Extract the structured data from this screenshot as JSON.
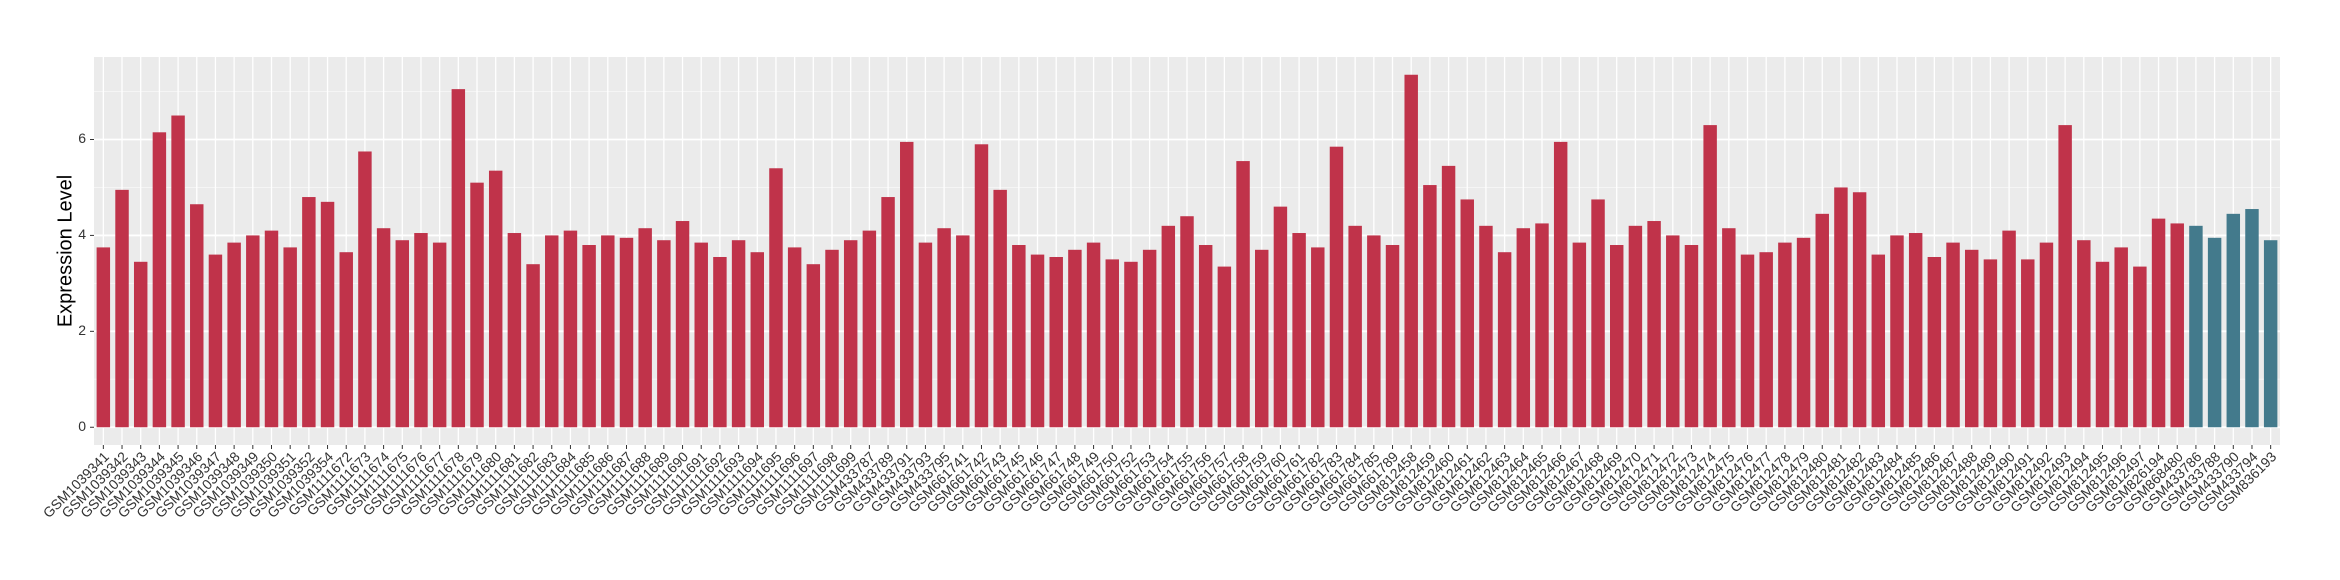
{
  "chart_data": {
    "type": "bar",
    "y_label": "Expression Level",
    "categories": [
      "GSM1039341",
      "GSM1039342",
      "GSM1039343",
      "GSM1039344",
      "GSM1039345",
      "GSM1039346",
      "GSM1039347",
      "GSM1039348",
      "GSM1039349",
      "GSM1039350",
      "GSM1039351",
      "GSM1039352",
      "GSM1039354",
      "GSM1111672",
      "GSM1111673",
      "GSM1111674",
      "GSM1111675",
      "GSM1111676",
      "GSM1111677",
      "GSM1111678",
      "GSM1111679",
      "GSM1111680",
      "GSM1111681",
      "GSM1111682",
      "GSM1111683",
      "GSM1111684",
      "GSM1111685",
      "GSM1111686",
      "GSM1111687",
      "GSM1111688",
      "GSM1111689",
      "GSM1111690",
      "GSM1111691",
      "GSM1111692",
      "GSM1111693",
      "GSM1111694",
      "GSM1111695",
      "GSM1111696",
      "GSM1111697",
      "GSM1111698",
      "GSM1111699",
      "GSM433787",
      "GSM433789",
      "GSM433791",
      "GSM433793",
      "GSM433795",
      "GSM661741",
      "GSM661742",
      "GSM661743",
      "GSM661745",
      "GSM661746",
      "GSM661747",
      "GSM661748",
      "GSM661749",
      "GSM661750",
      "GSM661752",
      "GSM661753",
      "GSM661754",
      "GSM661755",
      "GSM661756",
      "GSM661757",
      "GSM661758",
      "GSM661759",
      "GSM661760",
      "GSM661761",
      "GSM661782",
      "GSM661783",
      "GSM661784",
      "GSM661785",
      "GSM661789",
      "GSM812458",
      "GSM812459",
      "GSM812460",
      "GSM812461",
      "GSM812462",
      "GSM812463",
      "GSM812464",
      "GSM812465",
      "GSM812466",
      "GSM812467",
      "GSM812468",
      "GSM812469",
      "GSM812470",
      "GSM812471",
      "GSM812472",
      "GSM812473",
      "GSM812474",
      "GSM812475",
      "GSM812476",
      "GSM812477",
      "GSM812478",
      "GSM812479",
      "GSM812480",
      "GSM812481",
      "GSM812482",
      "GSM812483",
      "GSM812484",
      "GSM812485",
      "GSM812486",
      "GSM812487",
      "GSM812488",
      "GSM812489",
      "GSM812490",
      "GSM812491",
      "GSM812492",
      "GSM812493",
      "GSM812494",
      "GSM812495",
      "GSM812496",
      "GSM812497",
      "GSM826194",
      "GSM868480",
      "GSM433786",
      "GSM433788",
      "GSM433790",
      "GSM433794",
      "GSM836193"
    ],
    "values": [
      3.75,
      4.95,
      3.45,
      6.15,
      6.5,
      4.65,
      3.6,
      3.85,
      4.0,
      4.1,
      3.75,
      4.8,
      4.7,
      3.65,
      5.75,
      4.15,
      3.9,
      4.05,
      3.85,
      7.05,
      5.1,
      5.35,
      4.05,
      3.4,
      4.0,
      4.1,
      3.8,
      4.0,
      3.95,
      4.15,
      3.9,
      4.3,
      3.85,
      3.55,
      3.9,
      3.65,
      5.4,
      3.75,
      3.4,
      3.7,
      3.9,
      4.1,
      4.8,
      5.95,
      3.85,
      4.15,
      4.0,
      5.9,
      4.95,
      3.8,
      3.6,
      3.55,
      3.7,
      3.85,
      3.5,
      3.45,
      3.7,
      4.2,
      4.4,
      3.8,
      3.35,
      5.55,
      3.7,
      4.6,
      4.05,
      3.75,
      5.85,
      4.2,
      4.0,
      3.8,
      7.35,
      5.05,
      5.45,
      4.75,
      4.2,
      3.65,
      4.15,
      4.25,
      5.95,
      3.85,
      4.75,
      3.8,
      4.2,
      4.3,
      4.0,
      3.8,
      6.3,
      4.15,
      3.6,
      3.65,
      3.85,
      3.95,
      4.45,
      5.0,
      4.9,
      3.6,
      4.0,
      4.05,
      3.55,
      3.85,
      3.7,
      3.5,
      4.1,
      3.5,
      3.85,
      6.3,
      3.9,
      3.45,
      3.75,
      3.35,
      4.35,
      4.25,
      4.2,
      3.95,
      4.45,
      4.55,
      3.9
    ],
    "colors": [
      "#c0334a",
      "#c0334a",
      "#c0334a",
      "#c0334a",
      "#c0334a",
      "#c0334a",
      "#c0334a",
      "#c0334a",
      "#c0334a",
      "#c0334a",
      "#c0334a",
      "#c0334a",
      "#c0334a",
      "#c0334a",
      "#c0334a",
      "#c0334a",
      "#c0334a",
      "#c0334a",
      "#c0334a",
      "#c0334a",
      "#c0334a",
      "#c0334a",
      "#c0334a",
      "#c0334a",
      "#c0334a",
      "#c0334a",
      "#c0334a",
      "#c0334a",
      "#c0334a",
      "#c0334a",
      "#c0334a",
      "#c0334a",
      "#c0334a",
      "#c0334a",
      "#c0334a",
      "#c0334a",
      "#c0334a",
      "#c0334a",
      "#c0334a",
      "#c0334a",
      "#c0334a",
      "#c0334a",
      "#c0334a",
      "#c0334a",
      "#c0334a",
      "#c0334a",
      "#c0334a",
      "#c0334a",
      "#c0334a",
      "#c0334a",
      "#c0334a",
      "#c0334a",
      "#c0334a",
      "#c0334a",
      "#c0334a",
      "#c0334a",
      "#c0334a",
      "#c0334a",
      "#c0334a",
      "#c0334a",
      "#c0334a",
      "#c0334a",
      "#c0334a",
      "#c0334a",
      "#c0334a",
      "#c0334a",
      "#c0334a",
      "#c0334a",
      "#c0334a",
      "#c0334a",
      "#c0334a",
      "#c0334a",
      "#c0334a",
      "#c0334a",
      "#c0334a",
      "#c0334a",
      "#c0334a",
      "#c0334a",
      "#c0334a",
      "#c0334a",
      "#c0334a",
      "#c0334a",
      "#c0334a",
      "#c0334a",
      "#c0334a",
      "#c0334a",
      "#c0334a",
      "#c0334a",
      "#c0334a",
      "#c0334a",
      "#c0334a",
      "#c0334a",
      "#c0334a",
      "#c0334a",
      "#c0334a",
      "#c0334a",
      "#c0334a",
      "#c0334a",
      "#c0334a",
      "#c0334a",
      "#c0334a",
      "#c0334a",
      "#c0334a",
      "#c0334a",
      "#c0334a",
      "#c0334a",
      "#c0334a",
      "#c0334a",
      "#c0334a",
      "#c0334a",
      "#c0334a",
      "#c0334a",
      "#437a8c",
      "#437a8c",
      "#437a8c",
      "#437a8c",
      "#437a8c"
    ],
    "ylim": [
      -0.37,
      7.72
    ],
    "yticks": [
      0,
      2,
      4,
      6
    ],
    "minor_yticks": [
      1,
      3,
      5,
      7
    ],
    "grid": true
  }
}
